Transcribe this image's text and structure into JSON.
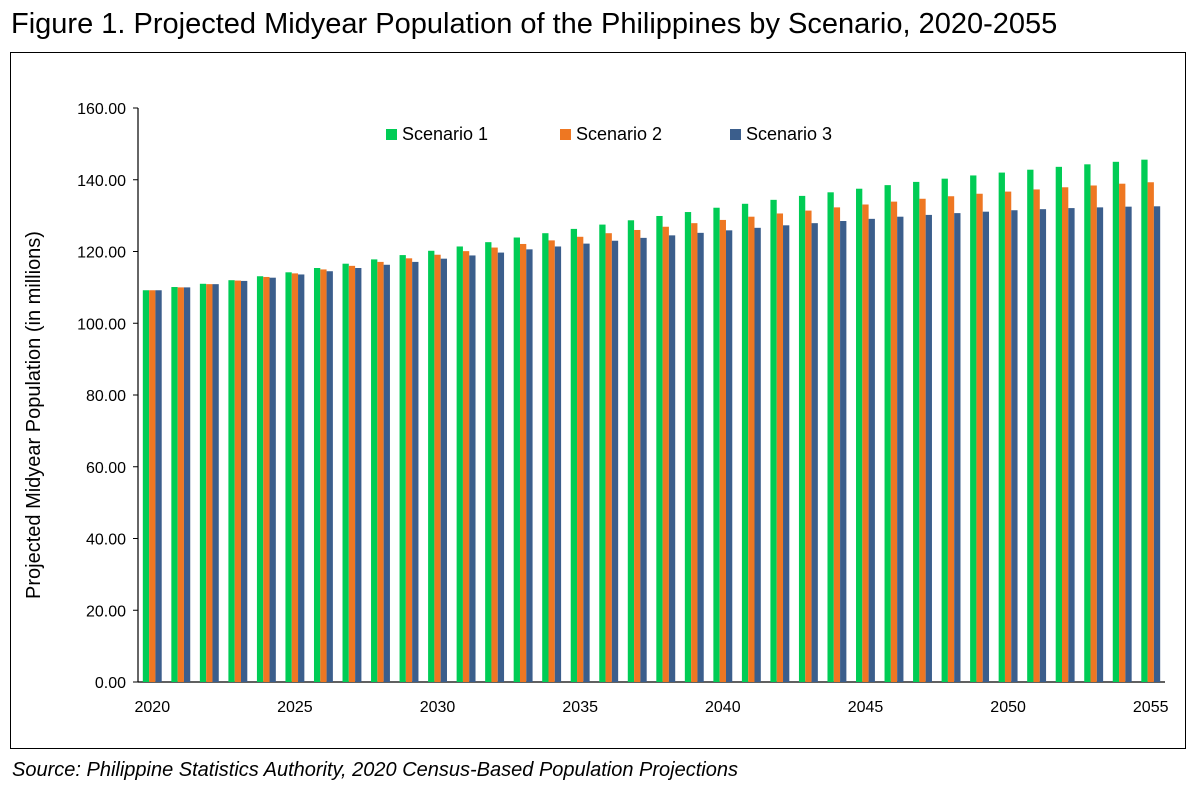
{
  "header": {
    "title": "Figure 1. Projected Midyear Population of the Philippines by Scenario, 2020-2055"
  },
  "footer": {
    "source": "Source:  Philippine Statistics Authority, 2020 Census-Based Population Projections"
  },
  "chart_data": {
    "type": "bar",
    "title": "Figure 1. Projected Midyear Population of the Philippines by Scenario, 2020-2055",
    "xlabel": "",
    "ylabel": "Projected Midyear Population (in millions)",
    "ylim": [
      0,
      160
    ],
    "y_ticks": [
      "0.00",
      "20.00",
      "40.00",
      "60.00",
      "80.00",
      "100.00",
      "120.00",
      "140.00",
      "160.00"
    ],
    "x_tick_labels": [
      "2020",
      "2025",
      "2030",
      "2035",
      "2040",
      "2045",
      "2050",
      "2055"
    ],
    "legend_position": "top-center",
    "categories": [
      "2020",
      "2021",
      "2022",
      "2023",
      "2024",
      "2025",
      "2026",
      "2027",
      "2028",
      "2029",
      "2030",
      "2031",
      "2032",
      "2033",
      "2034",
      "2035",
      "2036",
      "2037",
      "2038",
      "2039",
      "2040",
      "2041",
      "2042",
      "2043",
      "2044",
      "2045",
      "2046",
      "2047",
      "2048",
      "2049",
      "2050",
      "2051",
      "2052",
      "2053",
      "2054",
      "2055"
    ],
    "series": [
      {
        "name": "Scenario 1",
        "color": "#00cc55",
        "values": [
          109.2,
          110.1,
          111.0,
          112.0,
          113.1,
          114.2,
          115.4,
          116.6,
          117.8,
          119.0,
          120.2,
          121.4,
          122.6,
          123.9,
          125.1,
          126.3,
          127.5,
          128.7,
          129.9,
          131.0,
          132.2,
          133.3,
          134.4,
          135.5,
          136.5,
          137.5,
          138.5,
          139.4,
          140.3,
          141.2,
          142.0,
          142.8,
          143.6,
          144.3,
          145.0,
          145.6
        ]
      },
      {
        "name": "Scenario 2",
        "color": "#ee7722",
        "values": [
          109.2,
          110.0,
          110.9,
          111.9,
          112.9,
          113.9,
          115.0,
          116.0,
          117.1,
          118.1,
          119.1,
          120.1,
          121.1,
          122.1,
          123.1,
          124.1,
          125.1,
          126.0,
          126.9,
          127.9,
          128.8,
          129.7,
          130.6,
          131.4,
          132.3,
          133.1,
          133.9,
          134.7,
          135.4,
          136.1,
          136.7,
          137.3,
          137.9,
          138.4,
          138.9,
          139.3
        ]
      },
      {
        "name": "Scenario 3",
        "color": "#3b5e8c",
        "values": [
          109.2,
          110.0,
          110.9,
          111.8,
          112.7,
          113.6,
          114.5,
          115.4,
          116.3,
          117.1,
          118.0,
          118.9,
          119.7,
          120.6,
          121.4,
          122.2,
          123.0,
          123.8,
          124.5,
          125.2,
          125.9,
          126.6,
          127.3,
          127.9,
          128.5,
          129.1,
          129.7,
          130.2,
          130.7,
          131.1,
          131.5,
          131.8,
          132.1,
          132.3,
          132.5,
          132.6
        ]
      }
    ]
  }
}
